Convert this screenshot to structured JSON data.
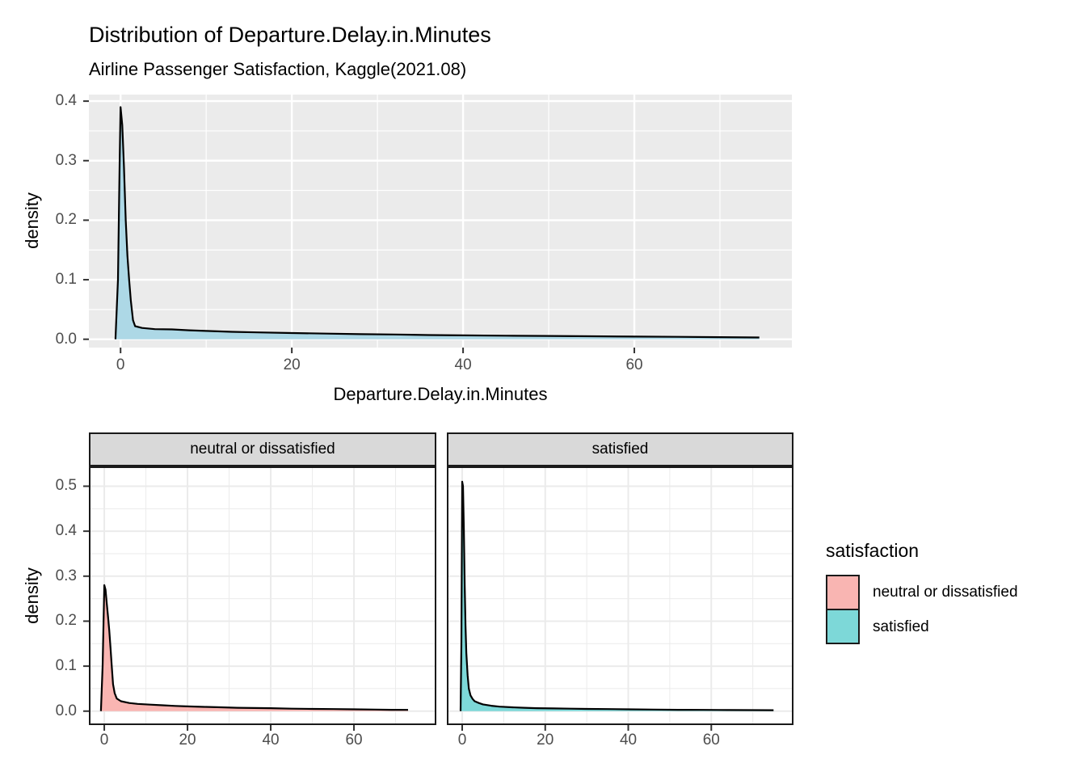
{
  "title": "Distribution of Departure.Delay.in.Minutes",
  "subtitle": "Airline Passenger Satisfaction, Kaggle(2021.08)",
  "legend": {
    "title": "satisfaction",
    "items": [
      {
        "label": "neutral or dissatisfied",
        "color": "#F9B5B2"
      },
      {
        "label": "satisfied",
        "color": "#7DD8D8"
      }
    ]
  },
  "colors": {
    "top_panel_bg": "#EBEBEB",
    "top_grid": "#FFFFFF",
    "facet_panel_bg": "#FFFFFF",
    "facet_grid": "#EBEBEB",
    "strip_bg": "#D9D9D9",
    "panel_border": "#1A1A1A",
    "axis_text": "#4D4D4D",
    "tick_mark": "#333333",
    "curve_stroke": "#000000"
  },
  "chart_data": [
    {
      "type": "area",
      "name": "overall-density",
      "title": "Distribution of Departure.Delay.in.Minutes",
      "xlabel": "Departure.Delay.in.Minutes",
      "ylabel": "density",
      "xlim": [
        -3.7,
        78.4
      ],
      "ylim": [
        -0.014,
        0.411
      ],
      "xticks": [
        0,
        20,
        40,
        60
      ],
      "xticklabels": [
        "0",
        "20",
        "40",
        "60"
      ],
      "xminor": [
        10,
        30,
        50,
        70
      ],
      "yticks": [
        0,
        0.1,
        0.2,
        0.3,
        0.4
      ],
      "yticklabels": [
        "0.0",
        "0.1",
        "0.2",
        "0.3",
        "0.4"
      ],
      "yminor": [
        0.05,
        0.15,
        0.25,
        0.35
      ],
      "fill": "#ADD8E6",
      "x": [
        -0.6,
        -0.3,
        -0.1,
        0,
        0.2,
        0.4,
        0.6,
        0.8,
        1.0,
        1.2,
        1.45,
        1.7,
        2.5,
        4,
        6,
        8,
        10,
        13,
        16,
        20,
        24,
        28,
        32,
        36,
        40,
        45,
        50,
        55,
        60,
        65,
        70,
        74.6
      ],
      "y": [
        0,
        0.1,
        0.3,
        0.39,
        0.36,
        0.29,
        0.2,
        0.14,
        0.1,
        0.065,
        0.032,
        0.022,
        0.019,
        0.017,
        0.0165,
        0.015,
        0.014,
        0.0125,
        0.0115,
        0.0105,
        0.0095,
        0.0085,
        0.008,
        0.007,
        0.0065,
        0.006,
        0.0055,
        0.005,
        0.0045,
        0.004,
        0.0035,
        0.003
      ]
    },
    {
      "type": "area",
      "name": "facet-neutral-density",
      "facet": "neutral or dissatisfied",
      "ylabel": "density",
      "xlim": [
        -3.7,
        79.8
      ],
      "ylim": [
        -0.031,
        0.544
      ],
      "xticks": [
        0,
        20,
        40,
        60
      ],
      "xticklabels": [
        "0",
        "20",
        "40",
        "60"
      ],
      "xminor": [
        10,
        30,
        50,
        70
      ],
      "yticks": [
        0,
        0.1,
        0.2,
        0.3,
        0.4,
        0.5
      ],
      "yticklabels": [
        "0.0",
        "0.1",
        "0.2",
        "0.3",
        "0.4",
        "0.5"
      ],
      "yminor": [
        0.05,
        0.15,
        0.25,
        0.35,
        0.45
      ],
      "fill": "#F9B5B2",
      "x": [
        -0.8,
        -0.4,
        0,
        0.3,
        0.6,
        0.9,
        1.2,
        1.5,
        1.8,
        2.1,
        2.5,
        3,
        4,
        6,
        8,
        11,
        14,
        17,
        20,
        24,
        28,
        32,
        36,
        40,
        45,
        50,
        55,
        60,
        65,
        69,
        73
      ],
      "y": [
        0,
        0.1,
        0.28,
        0.27,
        0.24,
        0.21,
        0.18,
        0.14,
        0.1,
        0.06,
        0.04,
        0.028,
        0.022,
        0.018,
        0.016,
        0.0145,
        0.013,
        0.0115,
        0.0105,
        0.0095,
        0.0085,
        0.0075,
        0.007,
        0.0065,
        0.0055,
        0.005,
        0.0045,
        0.004,
        0.0035,
        0.003,
        0.0028
      ]
    },
    {
      "type": "area",
      "name": "facet-satisfied-density",
      "facet": "satisfied",
      "ylabel": "density",
      "xlim": [
        -3.7,
        79.8
      ],
      "ylim": [
        -0.031,
        0.544
      ],
      "xticks": [
        0,
        20,
        40,
        60
      ],
      "xticklabels": [
        "0",
        "20",
        "40",
        "60"
      ],
      "xminor": [
        10,
        30,
        50,
        70
      ],
      "yticks": [
        0,
        0.1,
        0.2,
        0.3,
        0.4,
        0.5
      ],
      "yticklabels": [
        "0.0",
        "0.1",
        "0.2",
        "0.3",
        "0.4",
        "0.5"
      ],
      "yminor": [
        0.05,
        0.15,
        0.25,
        0.35,
        0.45
      ],
      "fill": "#7DD8D8",
      "x": [
        -0.4,
        -0.2,
        0,
        0.2,
        0.4,
        0.6,
        0.8,
        1.0,
        1.3,
        1.6,
        2,
        2.5,
        3,
        4,
        5,
        7,
        9,
        12,
        15,
        18,
        22,
        26,
        30,
        35,
        40,
        46,
        52,
        58,
        64,
        70,
        75
      ],
      "y": [
        0,
        0.15,
        0.51,
        0.5,
        0.4,
        0.28,
        0.19,
        0.13,
        0.08,
        0.05,
        0.035,
        0.027,
        0.022,
        0.018,
        0.015,
        0.012,
        0.01,
        0.0085,
        0.0075,
        0.0065,
        0.006,
        0.0055,
        0.005,
        0.0045,
        0.004,
        0.0035,
        0.003,
        0.0028,
        0.0025,
        0.0022,
        0.002
      ]
    }
  ]
}
